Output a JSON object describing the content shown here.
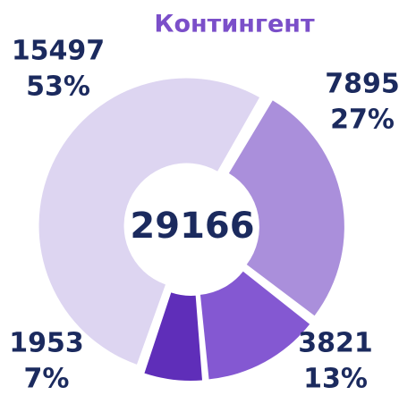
{
  "chart_data": {
    "type": "donut",
    "title": "Контингент",
    "categories": [
      null,
      null,
      null,
      null
    ],
    "values": [
      15497,
      7895,
      3821,
      1953
    ],
    "percent_labels": [
      "53%",
      "27%",
      "13%",
      "7%"
    ],
    "colors": [
      "#ddd5f1",
      "#aa8fdb",
      "#8458d2",
      "#5f2eb9"
    ],
    "total": 29166
  }
}
